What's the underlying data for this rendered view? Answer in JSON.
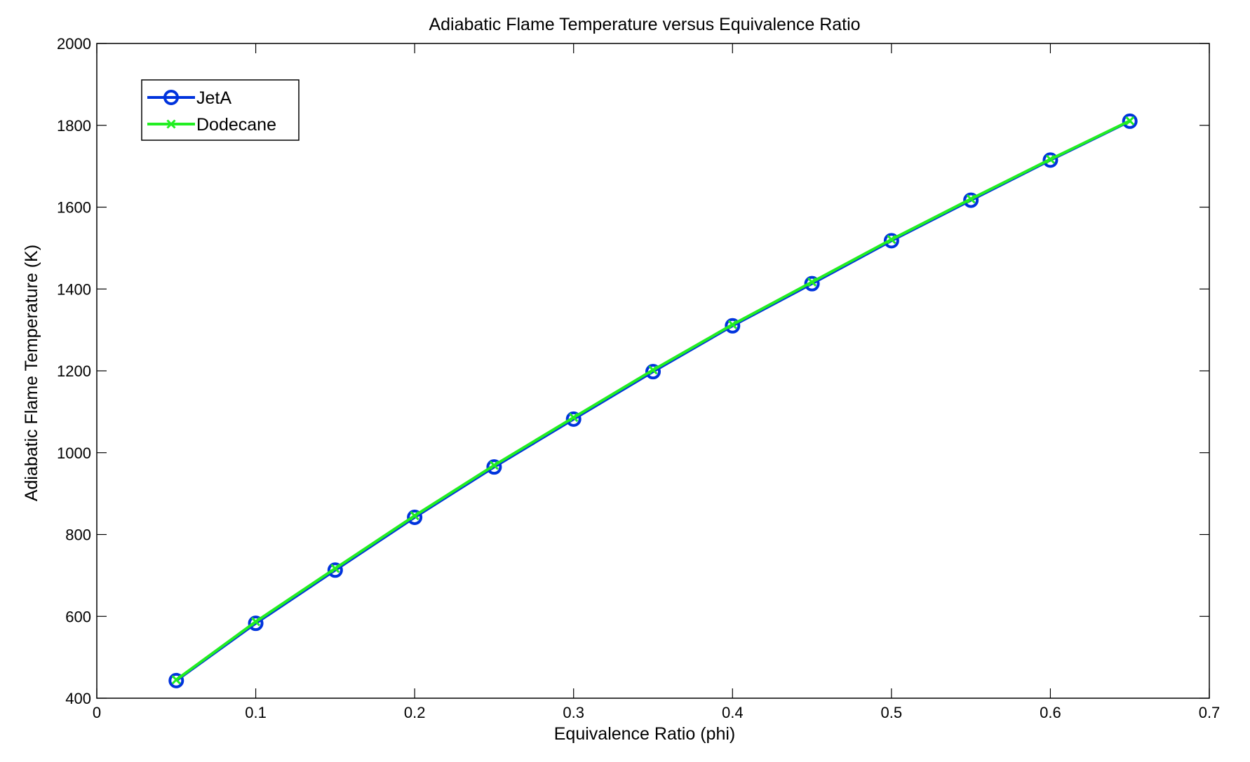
{
  "chart_data": {
    "type": "line",
    "title": "Adiabatic Flame Temperature versus Equivalence Ratio",
    "xlabel": "Equivalence Ratio (phi)",
    "ylabel": "Adiabatic Flame Temperature (K)",
    "xlim": [
      0,
      0.7
    ],
    "ylim": [
      400,
      2000
    ],
    "xticks": [
      "0",
      "0.1",
      "0.2",
      "0.3",
      "0.4",
      "0.5",
      "0.6",
      "0.7"
    ],
    "yticks": [
      "400",
      "600",
      "800",
      "1000",
      "1200",
      "1400",
      "1600",
      "1800",
      "2000"
    ],
    "grid": false,
    "legend_position": "top-left",
    "x": [
      0.05,
      0.1,
      0.15,
      0.2,
      0.25,
      0.3,
      0.35,
      0.4,
      0.45,
      0.5,
      0.55,
      0.6,
      0.65
    ],
    "series": [
      {
        "name": "JetA",
        "marker": "circle",
        "color": "#0033dd",
        "values": [
          443,
          583,
          713,
          842,
          965,
          1082,
          1198,
          1310,
          1413,
          1518,
          1617,
          1715,
          1810
        ]
      },
      {
        "name": "Dodecane",
        "marker": "x",
        "color": "#22ee22",
        "values": [
          445,
          587,
          717,
          846,
          969,
          1086,
          1202,
          1313,
          1417,
          1521,
          1620,
          1717,
          1811
        ]
      }
    ]
  }
}
